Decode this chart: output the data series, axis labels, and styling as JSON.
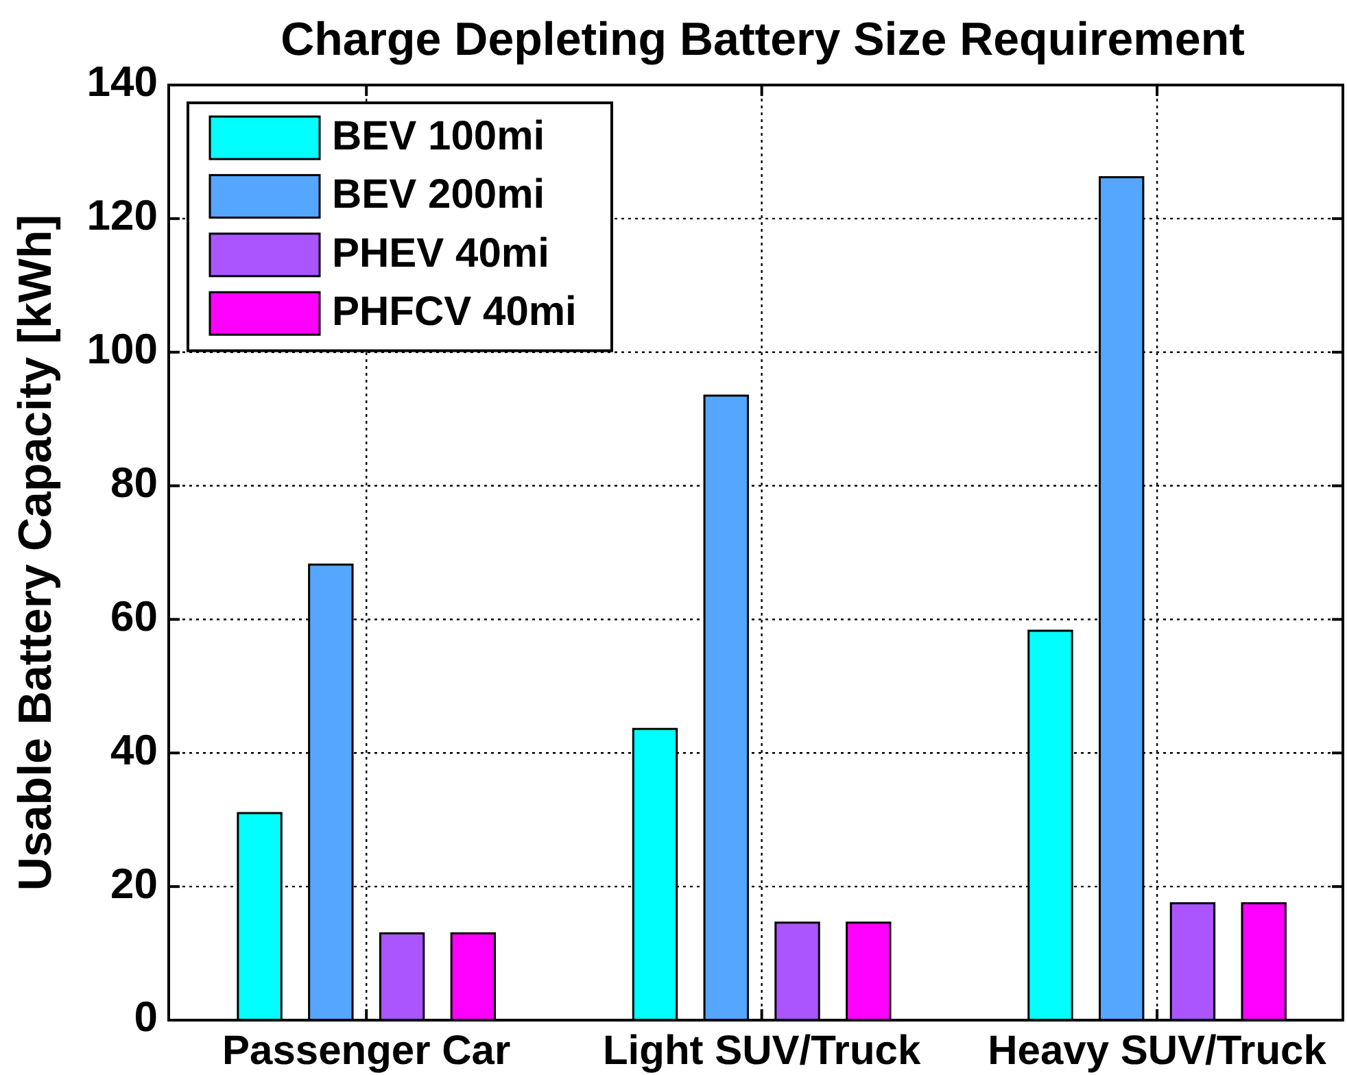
{
  "chart_data": {
    "type": "bar",
    "title": "Charge Depleting Battery Size Requirement",
    "ylabel": "Usable Battery Capacity [kWh]",
    "categories": [
      "Passenger Car",
      "Light SUV/Truck",
      "Heavy SUV/Truck"
    ],
    "series": [
      {
        "name": "BEV 100mi",
        "color": "#00ffff",
        "values": [
          31,
          43.6,
          58.3
        ]
      },
      {
        "name": "BEV 200mi",
        "color": "#55a6ff",
        "values": [
          68.2,
          93.5,
          126.2
        ]
      },
      {
        "name": "PHEV 40mi",
        "color": "#aa55ff",
        "values": [
          13,
          14.6,
          17.5
        ]
      },
      {
        "name": "PHFCV 40mi",
        "color": "#ff00ff",
        "values": [
          13,
          14.6,
          17.5
        ]
      }
    ],
    "ylim": [
      0,
      140
    ],
    "yticks": [
      0,
      20,
      40,
      60,
      80,
      100,
      120,
      140
    ],
    "grid": true,
    "legend": "top left"
  }
}
